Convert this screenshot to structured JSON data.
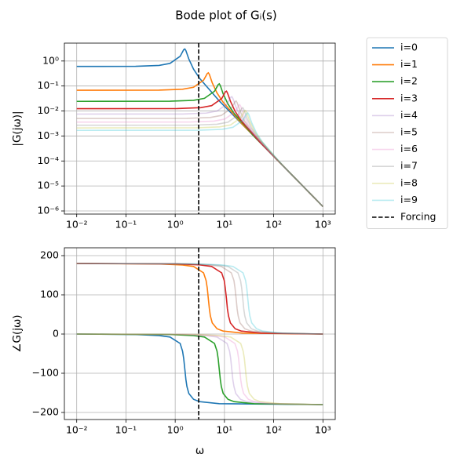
{
  "chart_data": [
    {
      "type": "line",
      "title": "Bode plot of Gᵢ(s)",
      "ylabel": "|G(jω)|",
      "xscale": "log",
      "yscale": "log",
      "grid": true,
      "legend": "outside upper right",
      "xlim": [
        0.00562,
        1778
      ],
      "ylim": [
        7.5e-07,
        5.2
      ],
      "xticks": [
        {
          "value": 0.01,
          "label": "10⁻²"
        },
        {
          "value": 0.1,
          "label": "10⁻¹"
        },
        {
          "value": 1,
          "label": "10⁰"
        },
        {
          "value": 10,
          "label": "10¹"
        },
        {
          "value": 100,
          "label": "10²"
        },
        {
          "value": 1000,
          "label": "10³"
        }
      ],
      "yticks": [
        {
          "value": 1e-06,
          "label": "10⁻⁶"
        },
        {
          "value": 1e-05,
          "label": "10⁻⁵"
        },
        {
          "value": 0.0001,
          "label": "10⁻⁴"
        },
        {
          "value": 0.001,
          "label": "10⁻³"
        },
        {
          "value": 0.01,
          "label": "10⁻²"
        },
        {
          "value": 0.1,
          "label": "10⁻¹"
        },
        {
          "value": 1,
          "label": "10⁰"
        }
      ],
      "vline": {
        "name": "Forcing",
        "x": 3,
        "color": "#000000",
        "dashed": true
      },
      "series": [
        {
          "name": "i=0",
          "color": "#1f77b4",
          "alpha": 1,
          "x": [
            0.01,
            0.157,
            0.471,
            0.785,
            1.26,
            1.41,
            1.49,
            1.57,
            1.65,
            1.73,
            1.89,
            2.36,
            3.14,
            7.85,
            1000
          ],
          "values": [
            0.608,
            0.614,
            0.667,
            0.804,
            1.54,
            2.32,
            2.85,
            3.04,
            2.6,
            2.0,
            1.21,
            0.473,
            0.201,
            0.0253,
            1.5e-06
          ]
        },
        {
          "name": "i=1",
          "color": "#ff7f0e",
          "alpha": 1,
          "x": [
            0.01,
            0.471,
            1.41,
            2.36,
            3.77,
            4.24,
            4.48,
            4.71,
            4.95,
            5.18,
            5.65,
            7.07,
            9.42,
            23.6,
            1000
          ],
          "values": [
            0.0676,
            0.0682,
            0.0741,
            0.0893,
            0.171,
            0.258,
            0.316,
            0.338,
            0.289,
            0.222,
            0.135,
            0.0526,
            0.0223,
            0.00281,
            1.5e-06
          ]
        },
        {
          "name": "i=2",
          "color": "#2ca02c",
          "alpha": 1,
          "x": [
            0.01,
            0.785,
            2.36,
            3.93,
            6.28,
            7.07,
            7.46,
            7.85,
            8.25,
            8.64,
            9.42,
            11.8,
            15.7,
            39.3,
            1000
          ],
          "values": [
            0.0243,
            0.0246,
            0.0267,
            0.0322,
            0.0617,
            0.0929,
            0.114,
            0.122,
            0.104,
            0.08,
            0.0485,
            0.0189,
            0.00804,
            0.00101,
            1.5e-06
          ]
        },
        {
          "name": "i=3",
          "color": "#d62728",
          "alpha": 1,
          "x": [
            0.01,
            1.1,
            3.3,
            5.5,
            8.8,
            9.9,
            10.4,
            11.0,
            11.5,
            12.1,
            13.2,
            16.5,
            22.0,
            55.0,
            1000
          ],
          "values": [
            0.0124,
            0.0125,
            0.0136,
            0.0164,
            0.0315,
            0.0474,
            0.0581,
            0.0621,
            0.0531,
            0.0408,
            0.0248,
            0.00965,
            0.0041,
            0.000517,
            1.5e-06
          ]
        },
        {
          "name": "i=4",
          "color": "#9467bd",
          "alpha": 0.3,
          "x": [
            0.01,
            1.41,
            4.24,
            7.07,
            11.3,
            12.7,
            13.4,
            14.1,
            14.8,
            15.6,
            17.0,
            21.2,
            28.3,
            70.7,
            1000
          ],
          "values": [
            0.00751,
            0.00758,
            0.00823,
            0.00992,
            0.019,
            0.0287,
            0.0351,
            0.0375,
            0.0321,
            0.0247,
            0.015,
            0.00584,
            0.00248,
            0.000312,
            1.5e-06
          ]
        },
        {
          "name": "i=5",
          "color": "#8c564b",
          "alpha": 0.3,
          "x": [
            0.01,
            1.73,
            5.18,
            8.64,
            13.8,
            15.6,
            16.4,
            17.3,
            18.1,
            19.0,
            20.7,
            25.9,
            34.6,
            86.4,
            1000
          ],
          "values": [
            0.00502,
            0.00507,
            0.00551,
            0.00664,
            0.0128,
            0.0192,
            0.0235,
            0.0251,
            0.0215,
            0.0165,
            0.01,
            0.00391,
            0.00166,
            0.000209,
            1.5e-06
          ]
        },
        {
          "name": "i=6",
          "color": "#e377c2",
          "alpha": 0.3,
          "x": [
            0.01,
            2.04,
            6.13,
            10.2,
            16.3,
            18.4,
            19.4,
            20.4,
            21.4,
            22.5,
            24.5,
            30.6,
            40.8,
            102,
            1000
          ],
          "values": [
            0.0036,
            0.00363,
            0.00394,
            0.00476,
            0.00913,
            0.0137,
            0.0168,
            0.018,
            0.0154,
            0.0118,
            0.00718,
            0.0028,
            0.00119,
            0.00015,
            1.5e-06
          ]
        },
        {
          "name": "i=7",
          "color": "#7f7f7f",
          "alpha": 0.3,
          "x": [
            0.01,
            2.36,
            7.07,
            11.8,
            18.8,
            21.2,
            22.4,
            23.6,
            24.7,
            25.9,
            28.3,
            35.3,
            47.1,
            118,
            1000
          ],
          "values": [
            0.0027,
            0.00273,
            0.00296,
            0.00357,
            0.00686,
            0.0103,
            0.0127,
            0.0135,
            0.0116,
            0.00888,
            0.00539,
            0.0021,
            0.000893,
            0.000112,
            1.5e-06
          ]
        },
        {
          "name": "i=8",
          "color": "#bcbd22",
          "alpha": 0.3,
          "x": [
            0.01,
            2.67,
            8.01,
            13.4,
            21.4,
            24.0,
            25.4,
            26.7,
            28.0,
            29.4,
            32.0,
            40.1,
            53.4,
            134,
            1000
          ],
          "values": [
            0.0021,
            0.00213,
            0.00231,
            0.00278,
            0.00534,
            0.00804,
            0.00985,
            0.0105,
            0.009,
            0.00692,
            0.0042,
            0.00164,
            0.000695,
            8.76e-05,
            1.5e-06
          ]
        },
        {
          "name": "i=9",
          "color": "#17becf",
          "alpha": 0.3,
          "x": [
            0.01,
            2.98,
            8.95,
            14.9,
            23.9,
            26.9,
            28.4,
            29.8,
            31.3,
            32.8,
            35.8,
            44.8,
            59.7,
            149,
            1000
          ],
          "values": [
            0.00168,
            0.0017,
            0.00185,
            0.00223,
            0.00427,
            0.00643,
            0.00789,
            0.00842,
            0.00721,
            0.00554,
            0.00336,
            0.00131,
            0.000556,
            7.01e-05,
            1.5e-06
          ]
        }
      ]
    },
    {
      "type": "line",
      "xlabel": "ω",
      "ylabel": "∠G(jω)",
      "xscale": "log",
      "yscale": "linear",
      "grid": true,
      "xlim": [
        0.00562,
        1778
      ],
      "ylim": [
        -218,
        220
      ],
      "xticks": [
        {
          "value": 0.01,
          "label": "10⁻²"
        },
        {
          "value": 0.1,
          "label": "10⁻¹"
        },
        {
          "value": 1,
          "label": "10⁰"
        },
        {
          "value": 10,
          "label": "10¹"
        },
        {
          "value": 100,
          "label": "10²"
        },
        {
          "value": 1000,
          "label": "10³"
        }
      ],
      "yticks": [
        {
          "value": -200,
          "label": "−200"
        },
        {
          "value": -100,
          "label": "−100"
        },
        0,
        100,
        200
      ],
      "vline": {
        "x": 3,
        "color": "#000000",
        "dashed": true
      },
      "series": [
        {
          "color": "#1f77b4",
          "alpha": 1,
          "x": [
            0.01,
            0.157,
            0.471,
            0.785,
            1.26,
            1.41,
            1.49,
            1.57,
            1.65,
            1.73,
            1.89,
            2.36,
            3.14,
            7.85,
            1000
          ],
          "values": [
            0,
            -1.2,
            -3.8,
            -7.6,
            -24.0,
            -43.5,
            -62.8,
            -90,
            -116.0,
            -133.7,
            -151.4,
            -166.5,
            -172.4,
            -177.6,
            -180
          ]
        },
        {
          "color": "#ff7f0e",
          "alpha": 1,
          "x": [
            0.01,
            0.471,
            1.41,
            2.36,
            3.77,
            4.24,
            4.48,
            4.71,
            4.95,
            5.18,
            5.65,
            7.07,
            9.42,
            23.6,
            1000
          ],
          "values": [
            180,
            178.8,
            176.2,
            172.4,
            156.0,
            136.5,
            117.2,
            90,
            64.0,
            46.3,
            28.6,
            13.5,
            7.6,
            2.4,
            0
          ]
        },
        {
          "color": "#2ca02c",
          "alpha": 1,
          "x": [
            0.01,
            0.785,
            2.36,
            3.93,
            6.28,
            7.07,
            7.46,
            7.85,
            8.25,
            8.64,
            9.42,
            11.8,
            15.7,
            39.3,
            1000
          ],
          "values": [
            0,
            -1.2,
            -3.8,
            -7.6,
            -24.0,
            -43.5,
            -62.8,
            -90,
            -116.0,
            -133.7,
            -151.4,
            -166.5,
            -172.4,
            -177.6,
            -180
          ]
        },
        {
          "color": "#d62728",
          "alpha": 1,
          "x": [
            0.01,
            1.1,
            3.3,
            5.5,
            8.8,
            9.9,
            10.4,
            11.0,
            11.5,
            12.1,
            13.2,
            16.5,
            22.0,
            55.0,
            1000
          ],
          "values": [
            180,
            178.8,
            176.2,
            172.4,
            156.0,
            136.5,
            117.2,
            90,
            64.0,
            46.3,
            28.6,
            13.5,
            7.6,
            2.4,
            0
          ]
        },
        {
          "color": "#9467bd",
          "alpha": 0.3,
          "x": [
            0.01,
            1.41,
            4.24,
            7.07,
            11.3,
            12.7,
            13.4,
            14.1,
            14.8,
            15.6,
            17.0,
            21.2,
            28.3,
            70.7,
            1000
          ],
          "values": [
            0,
            -1.2,
            -3.8,
            -7.6,
            -24.0,
            -43.5,
            -62.8,
            -90,
            -116.0,
            -133.7,
            -151.4,
            -166.5,
            -172.4,
            -177.6,
            -180
          ]
        },
        {
          "color": "#8c564b",
          "alpha": 0.3,
          "x": [
            0.01,
            1.73,
            5.18,
            8.64,
            13.8,
            15.6,
            16.4,
            17.3,
            18.1,
            19.0,
            20.7,
            25.9,
            34.6,
            86.4,
            1000
          ],
          "values": [
            180,
            178.8,
            176.2,
            172.4,
            156.0,
            136.5,
            117.2,
            90,
            64.0,
            46.3,
            28.6,
            13.5,
            7.6,
            2.4,
            0
          ]
        },
        {
          "color": "#e377c2",
          "alpha": 0.3,
          "x": [
            0.01,
            2.04,
            6.13,
            10.2,
            16.3,
            18.4,
            19.4,
            20.4,
            21.4,
            22.5,
            24.5,
            30.6,
            40.8,
            102,
            1000
          ],
          "values": [
            0,
            -1.2,
            -3.8,
            -7.6,
            -24.0,
            -43.5,
            -62.8,
            -90,
            -116.0,
            -133.7,
            -151.4,
            -166.5,
            -172.4,
            -177.6,
            -180
          ]
        },
        {
          "color": "#7f7f7f",
          "alpha": 0.3,
          "x": [
            0.01,
            2.36,
            7.07,
            11.8,
            18.8,
            21.2,
            22.4,
            23.6,
            24.7,
            25.9,
            28.3,
            35.3,
            47.1,
            118,
            1000
          ],
          "values": [
            180,
            178.8,
            176.2,
            172.4,
            156.0,
            136.5,
            117.2,
            90,
            64.0,
            46.3,
            28.6,
            13.5,
            7.6,
            2.4,
            0
          ]
        },
        {
          "color": "#bcbd22",
          "alpha": 0.3,
          "x": [
            0.01,
            2.67,
            8.01,
            13.4,
            21.4,
            24.0,
            25.4,
            26.7,
            28.0,
            29.4,
            32.0,
            40.1,
            53.4,
            134,
            1000
          ],
          "values": [
            0,
            -1.2,
            -3.8,
            -7.6,
            -24.0,
            -43.5,
            -62.8,
            -90,
            -116.0,
            -133.7,
            -151.4,
            -166.5,
            -172.4,
            -177.6,
            -180
          ]
        },
        {
          "color": "#17becf",
          "alpha": 0.3,
          "x": [
            0.01,
            2.98,
            8.95,
            14.9,
            23.9,
            26.9,
            28.4,
            29.8,
            31.3,
            32.8,
            35.8,
            44.8,
            59.7,
            149,
            1000
          ],
          "values": [
            180,
            178.8,
            176.2,
            172.4,
            156.0,
            136.5,
            117.2,
            90,
            64.0,
            46.3,
            28.6,
            13.5,
            7.6,
            2.4,
            0
          ]
        }
      ]
    }
  ]
}
